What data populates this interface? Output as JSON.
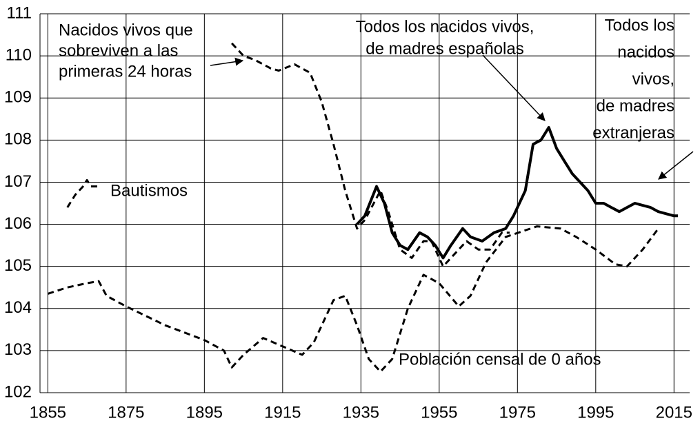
{
  "chart_data": {
    "type": "line",
    "xlim": [
      1853,
      2019
    ],
    "ylim": [
      102,
      111
    ],
    "xticks": [
      1855,
      1875,
      1895,
      1915,
      1935,
      1955,
      1975,
      1995,
      2015
    ],
    "yticks": [
      102,
      103,
      104,
      105,
      106,
      107,
      108,
      109,
      110,
      111
    ],
    "grid": true,
    "series": [
      {
        "color": "#000000",
        "dashed": true,
        "x": [
          1860,
          1862,
          1864,
          1865,
          1866,
          1868
        ],
        "values": [
          106.4,
          106.7,
          106.9,
          107.05,
          106.9,
          106.9
        ]
      },
      {
        "color": "#000000",
        "dashed": true,
        "x": [
          1902,
          1905,
          1908,
          1912,
          1914,
          1918,
          1922,
          1925,
          1928,
          1931,
          1934,
          1936,
          1940,
          1942,
          1945,
          1948,
          1951,
          1953,
          1956,
          1959,
          1962,
          1965,
          1968,
          1971,
          1973
        ],
        "values": [
          110.3,
          110.0,
          109.9,
          109.7,
          109.65,
          109.8,
          109.6,
          108.9,
          107.9,
          106.8,
          105.9,
          106.1,
          106.8,
          106.3,
          105.4,
          105.2,
          105.6,
          105.6,
          105.0,
          105.3,
          105.6,
          105.4,
          105.4,
          105.8,
          105.8
        ]
      },
      {
        "color": "#000000",
        "dashed": true,
        "x": [
          1855,
          1860,
          1865,
          1868,
          1870,
          1875,
          1885,
          1895,
          1900,
          1902,
          1905,
          1910,
          1915,
          1920,
          1923,
          1928,
          1931,
          1934,
          1937,
          1940,
          1943,
          1947,
          1951,
          1955,
          1960,
          1963,
          1967,
          1972,
          1980,
          1986,
          1990,
          1995,
          2000,
          2003,
          2007,
          2011
        ],
        "values": [
          104.35,
          104.5,
          104.6,
          104.65,
          104.3,
          104.05,
          103.6,
          103.25,
          103.0,
          102.6,
          102.9,
          103.3,
          103.1,
          102.9,
          103.2,
          104.2,
          104.3,
          103.6,
          102.8,
          102.5,
          102.8,
          104.0,
          104.8,
          104.6,
          104.05,
          104.3,
          105.1,
          105.7,
          105.95,
          105.9,
          105.7,
          105.4,
          105.05,
          105.0,
          105.4,
          105.9
        ]
      },
      {
        "color": "#000000",
        "dashed": false,
        "x": [
          1934,
          1936,
          1939,
          1941,
          1943,
          1945,
          1947,
          1950,
          1952,
          1954,
          1956,
          1958,
          1961,
          1963,
          1966,
          1969,
          1972,
          1974,
          1977,
          1979,
          1981,
          1983,
          1985,
          1987,
          1989,
          1991,
          1993,
          1995,
          1997,
          1999,
          2001,
          2003,
          2005,
          2007,
          2009,
          2011,
          2013,
          2015,
          2016
        ],
        "values": [
          106.0,
          106.2,
          106.9,
          106.5,
          105.8,
          105.5,
          105.4,
          105.8,
          105.7,
          105.5,
          105.2,
          105.5,
          105.9,
          105.7,
          105.6,
          105.8,
          105.9,
          106.2,
          106.8,
          107.9,
          108.0,
          108.3,
          107.8,
          107.5,
          107.2,
          107.0,
          106.8,
          106.5,
          106.5,
          106.4,
          106.3,
          106.4,
          106.5,
          106.45,
          106.4,
          106.3,
          106.25,
          106.2,
          106.2
        ]
      }
    ],
    "annotations": [
      {
        "lines": [
          "Nacidos vivos que",
          "sobreviven  a las",
          "primeras 24 horas"
        ]
      },
      {
        "lines": [
          "Todos los nacidos vivos,",
          "de madres españolas"
        ]
      },
      {
        "lines": [
          "Todos los",
          "nacidos",
          "vivos,",
          "de madres",
          "extranjeras"
        ]
      },
      {
        "lines": [
          "Bautismos"
        ]
      },
      {
        "lines": [
          "Población censal de 0 años"
        ]
      }
    ]
  }
}
